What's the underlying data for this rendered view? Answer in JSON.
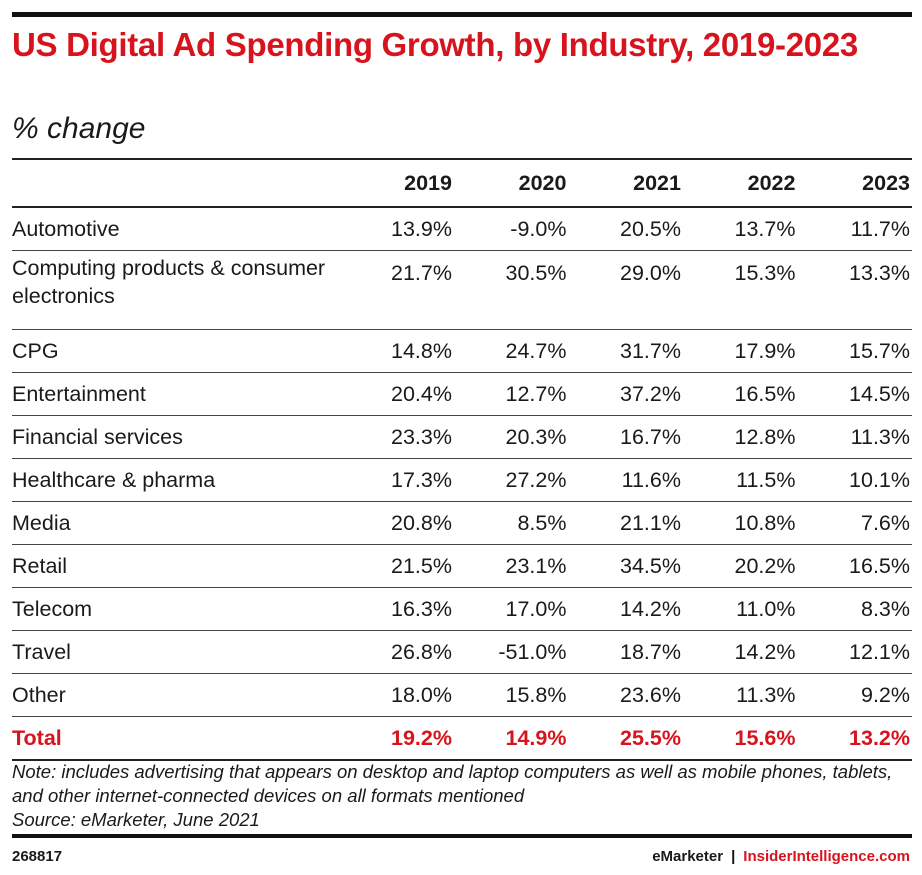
{
  "chart_data": {
    "type": "table",
    "title": "US Digital Ad Spending Growth, by Industry, 2019-2023",
    "subtitle": "% change",
    "columns": [
      "2019",
      "2020",
      "2021",
      "2022",
      "2023"
    ],
    "rows": [
      {
        "label": "Automotive",
        "values": [
          "13.9%",
          "-9.0%",
          "20.5%",
          "13.7%",
          "11.7%"
        ]
      },
      {
        "label": "Computing products & consumer electronics",
        "values": [
          "21.7%",
          "30.5%",
          "29.0%",
          "15.3%",
          "13.3%"
        ]
      },
      {
        "label": "CPG",
        "values": [
          "14.8%",
          "24.7%",
          "31.7%",
          "17.9%",
          "15.7%"
        ]
      },
      {
        "label": "Entertainment",
        "values": [
          "20.4%",
          "12.7%",
          "37.2%",
          "16.5%",
          "14.5%"
        ]
      },
      {
        "label": "Financial services",
        "values": [
          "23.3%",
          "20.3%",
          "16.7%",
          "12.8%",
          "11.3%"
        ]
      },
      {
        "label": "Healthcare & pharma",
        "values": [
          "17.3%",
          "27.2%",
          "11.6%",
          "11.5%",
          "10.1%"
        ]
      },
      {
        "label": "Media",
        "values": [
          "20.8%",
          "8.5%",
          "21.1%",
          "10.8%",
          "7.6%"
        ]
      },
      {
        "label": "Retail",
        "values": [
          "21.5%",
          "23.1%",
          "34.5%",
          "20.2%",
          "16.5%"
        ]
      },
      {
        "label": "Telecom",
        "values": [
          "16.3%",
          "17.0%",
          "14.2%",
          "11.0%",
          "8.3%"
        ]
      },
      {
        "label": "Travel",
        "values": [
          "26.8%",
          "-51.0%",
          "18.7%",
          "14.2%",
          "12.1%"
        ]
      },
      {
        "label": "Other",
        "values": [
          "18.0%",
          "15.8%",
          "23.6%",
          "11.3%",
          "9.2%"
        ]
      }
    ],
    "total": {
      "label": "Total",
      "values": [
        "19.2%",
        "14.9%",
        "25.5%",
        "15.6%",
        "13.2%"
      ]
    },
    "note": "Note: includes advertising that appears on desktop and laptop computers as well as mobile phones, tablets, and other internet-connected devices on all formats mentioned",
    "source": "Source: eMarketer, June 2021"
  },
  "footer": {
    "chart_id": "268817",
    "brand": "eMarketer",
    "separator": "|",
    "brand2": "InsiderIntelligence.com"
  },
  "colors": {
    "accent": "#d7141d",
    "text": "#1a1a1a",
    "rule": "#111111"
  }
}
